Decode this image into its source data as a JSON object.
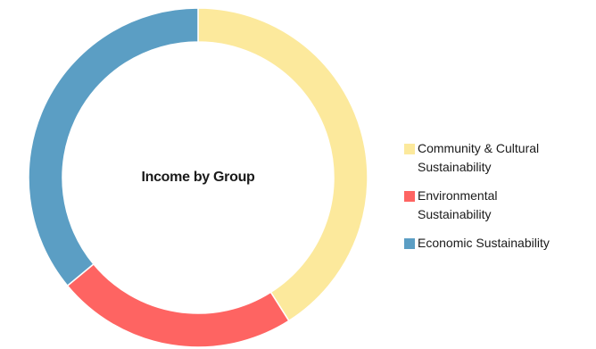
{
  "chart_data": {
    "type": "pie",
    "title": "Income by Group",
    "donut": true,
    "legend_position": "right",
    "slices": [
      {
        "label": "Community & Cultural Sustainability",
        "value": 41,
        "color": "#FCE99C"
      },
      {
        "label": "Environmental Sustainability",
        "value": 23,
        "color": "#FE6462"
      },
      {
        "label": "Economic Sustainability",
        "value": 36,
        "color": "#5B9EC4"
      }
    ]
  },
  "legend": {
    "items": [
      {
        "line1": "Community & Cultural",
        "line2": "Sustainability",
        "color": "#FCE99C"
      },
      {
        "line1": "Environmental",
        "line2": "Sustainability",
        "color": "#FE6462"
      },
      {
        "line1": "Economic Sustainability",
        "line2": "",
        "color": "#5B9EC4"
      }
    ]
  }
}
